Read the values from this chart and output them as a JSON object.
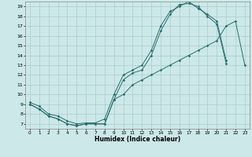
{
  "title": "",
  "xlabel": "Humidex (Indice chaleur)",
  "bg_color": "#cce8e8",
  "grid_color": "#aacccc",
  "line_color": "#2d6e6e",
  "xlim": [
    -0.5,
    23.5
  ],
  "ylim": [
    6.5,
    19.5
  ],
  "xticks": [
    0,
    1,
    2,
    3,
    4,
    5,
    6,
    7,
    8,
    9,
    10,
    11,
    12,
    13,
    14,
    15,
    16,
    17,
    18,
    19,
    20,
    21,
    22,
    23
  ],
  "yticks": [
    7,
    8,
    9,
    10,
    11,
    12,
    13,
    14,
    15,
    16,
    17,
    18,
    19
  ],
  "line1_x": [
    0,
    1,
    2,
    3,
    4,
    5,
    6,
    7,
    8,
    9,
    10,
    11,
    12,
    13,
    14,
    15,
    16,
    17,
    18,
    19,
    20,
    21
  ],
  "line1_y": [
    9.0,
    8.5,
    7.8,
    7.5,
    7.0,
    6.8,
    7.0,
    7.0,
    7.0,
    9.5,
    11.5,
    12.2,
    12.5,
    14.0,
    16.5,
    18.2,
    19.2,
    19.3,
    19.0,
    18.0,
    17.2,
    13.2
  ],
  "line2_x": [
    0,
    1,
    2,
    3,
    4,
    5,
    6,
    7,
    8,
    9,
    10,
    11,
    12,
    13,
    14,
    15,
    16,
    17,
    18,
    19,
    20,
    21,
    22,
    23
  ],
  "line2_y": [
    9.0,
    8.5,
    7.8,
    7.5,
    7.0,
    6.8,
    7.0,
    7.0,
    7.0,
    9.5,
    10.0,
    11.0,
    11.5,
    12.0,
    12.5,
    13.0,
    13.5,
    14.0,
    14.5,
    15.0,
    15.5,
    17.0,
    17.5,
    13.0
  ],
  "line3_x": [
    0,
    1,
    2,
    3,
    4,
    5,
    6,
    7,
    8,
    9,
    10,
    11,
    12,
    13,
    14,
    15,
    16,
    17,
    18,
    19,
    20,
    21
  ],
  "line3_y": [
    9.2,
    8.8,
    8.0,
    7.8,
    7.3,
    7.0,
    7.1,
    7.1,
    7.5,
    10.0,
    12.0,
    12.5,
    13.0,
    14.5,
    17.0,
    18.5,
    19.0,
    19.5,
    18.8,
    18.2,
    17.5,
    13.5
  ]
}
